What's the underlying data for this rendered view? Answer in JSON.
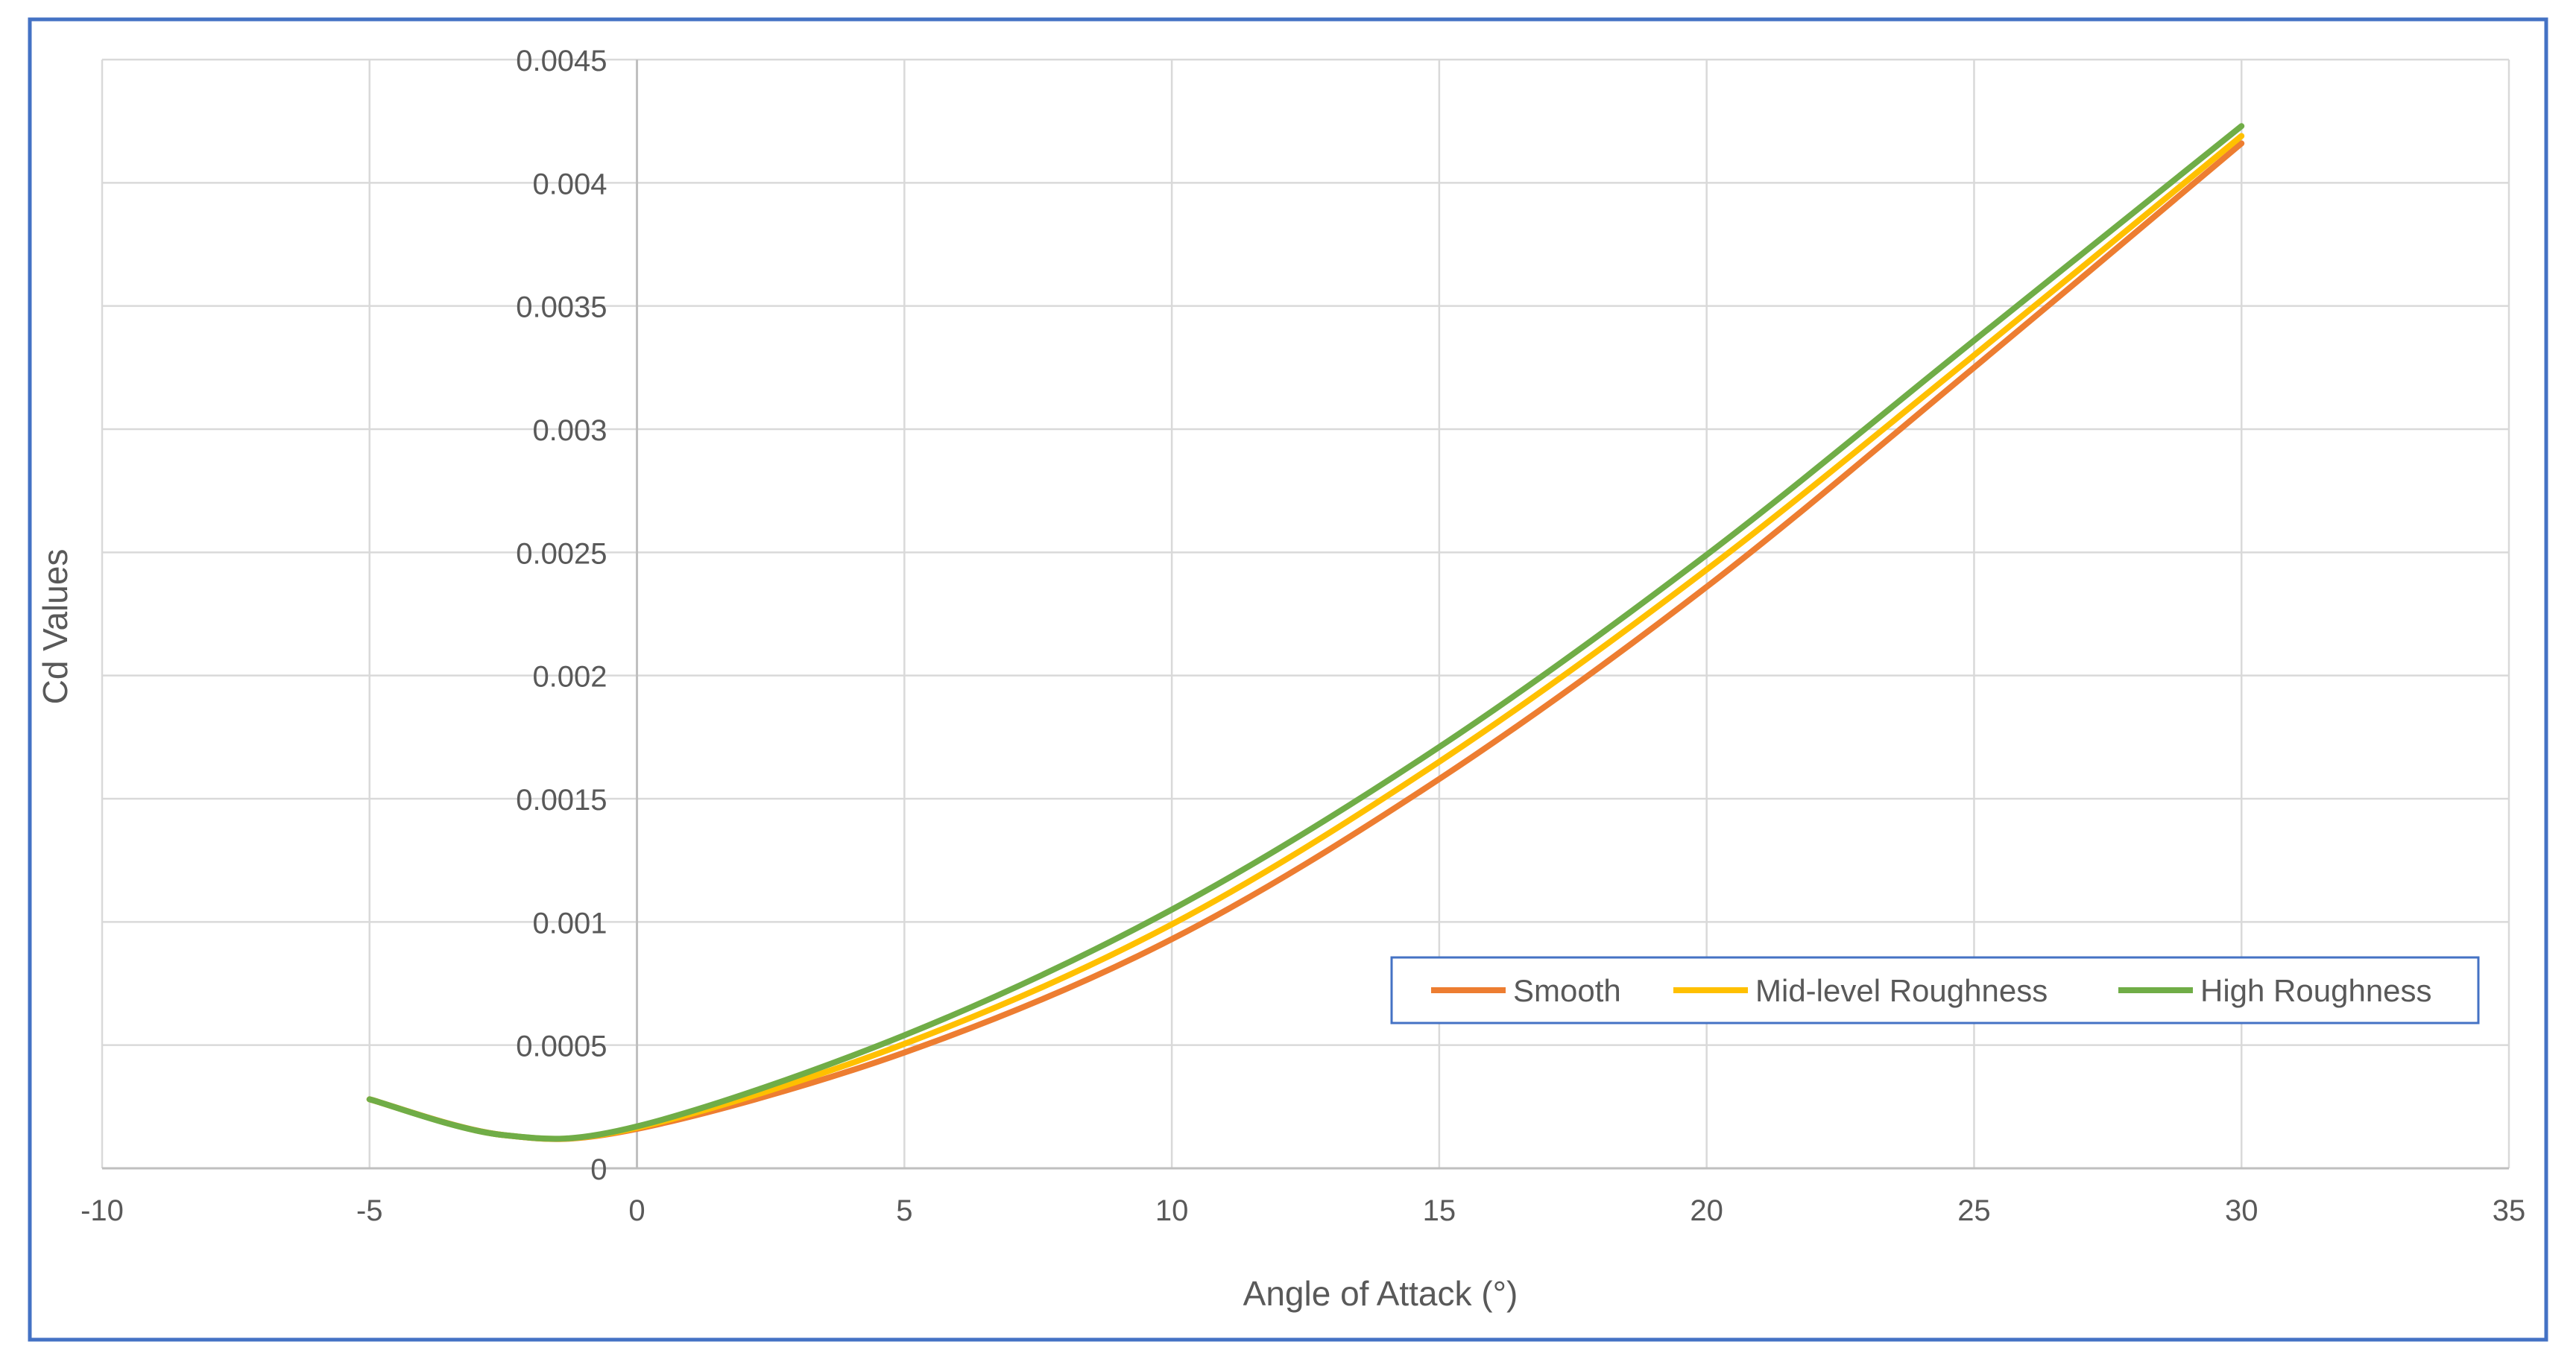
{
  "chart_data": {
    "type": "line",
    "title": "",
    "xlabel": "Angle of Attack (°)",
    "ylabel": "Cd Values",
    "xlim": [
      -10,
      35
    ],
    "ylim": [
      0,
      0.0045
    ],
    "x_ticks": [
      -10,
      -5,
      0,
      5,
      10,
      15,
      20,
      25,
      30,
      35
    ],
    "x_tick_labels": [
      "-10",
      "-5",
      "0",
      "5",
      "10",
      "15",
      "20",
      "25",
      "30",
      "35"
    ],
    "y_ticks": [
      0,
      0.0005,
      0.001,
      0.0015,
      0.002,
      0.0025,
      0.003,
      0.0035,
      0.004,
      0.0045
    ],
    "y_tick_labels": [
      "0",
      "0.0005",
      "0.001",
      "0.0015",
      "0.002",
      "0.0025",
      "0.003",
      "0.0035",
      "0.004",
      "0.0045"
    ],
    "grid": true,
    "legend_position": "bottom-right",
    "x": [
      -5,
      -2.5,
      0,
      5,
      10,
      15,
      20,
      25,
      30
    ],
    "series": [
      {
        "name": "Smooth",
        "color": "#ED7D31",
        "values": [
          0.00028,
          0.000135,
          0.00016,
          0.00047,
          0.00093,
          0.00158,
          0.00236,
          0.00325,
          0.00416
        ]
      },
      {
        "name": "Mid-level Roughness",
        "color": "#FFC000",
        "values": [
          0.00028,
          0.000135,
          0.000165,
          0.000505,
          0.00099,
          0.00165,
          0.00243,
          0.0033,
          0.00419
        ]
      },
      {
        "name": "High Roughness",
        "color": "#70AD47",
        "values": [
          0.00028,
          0.000135,
          0.00017,
          0.00054,
          0.00105,
          0.00171,
          0.00249,
          0.00336,
          0.00423
        ]
      }
    ]
  }
}
